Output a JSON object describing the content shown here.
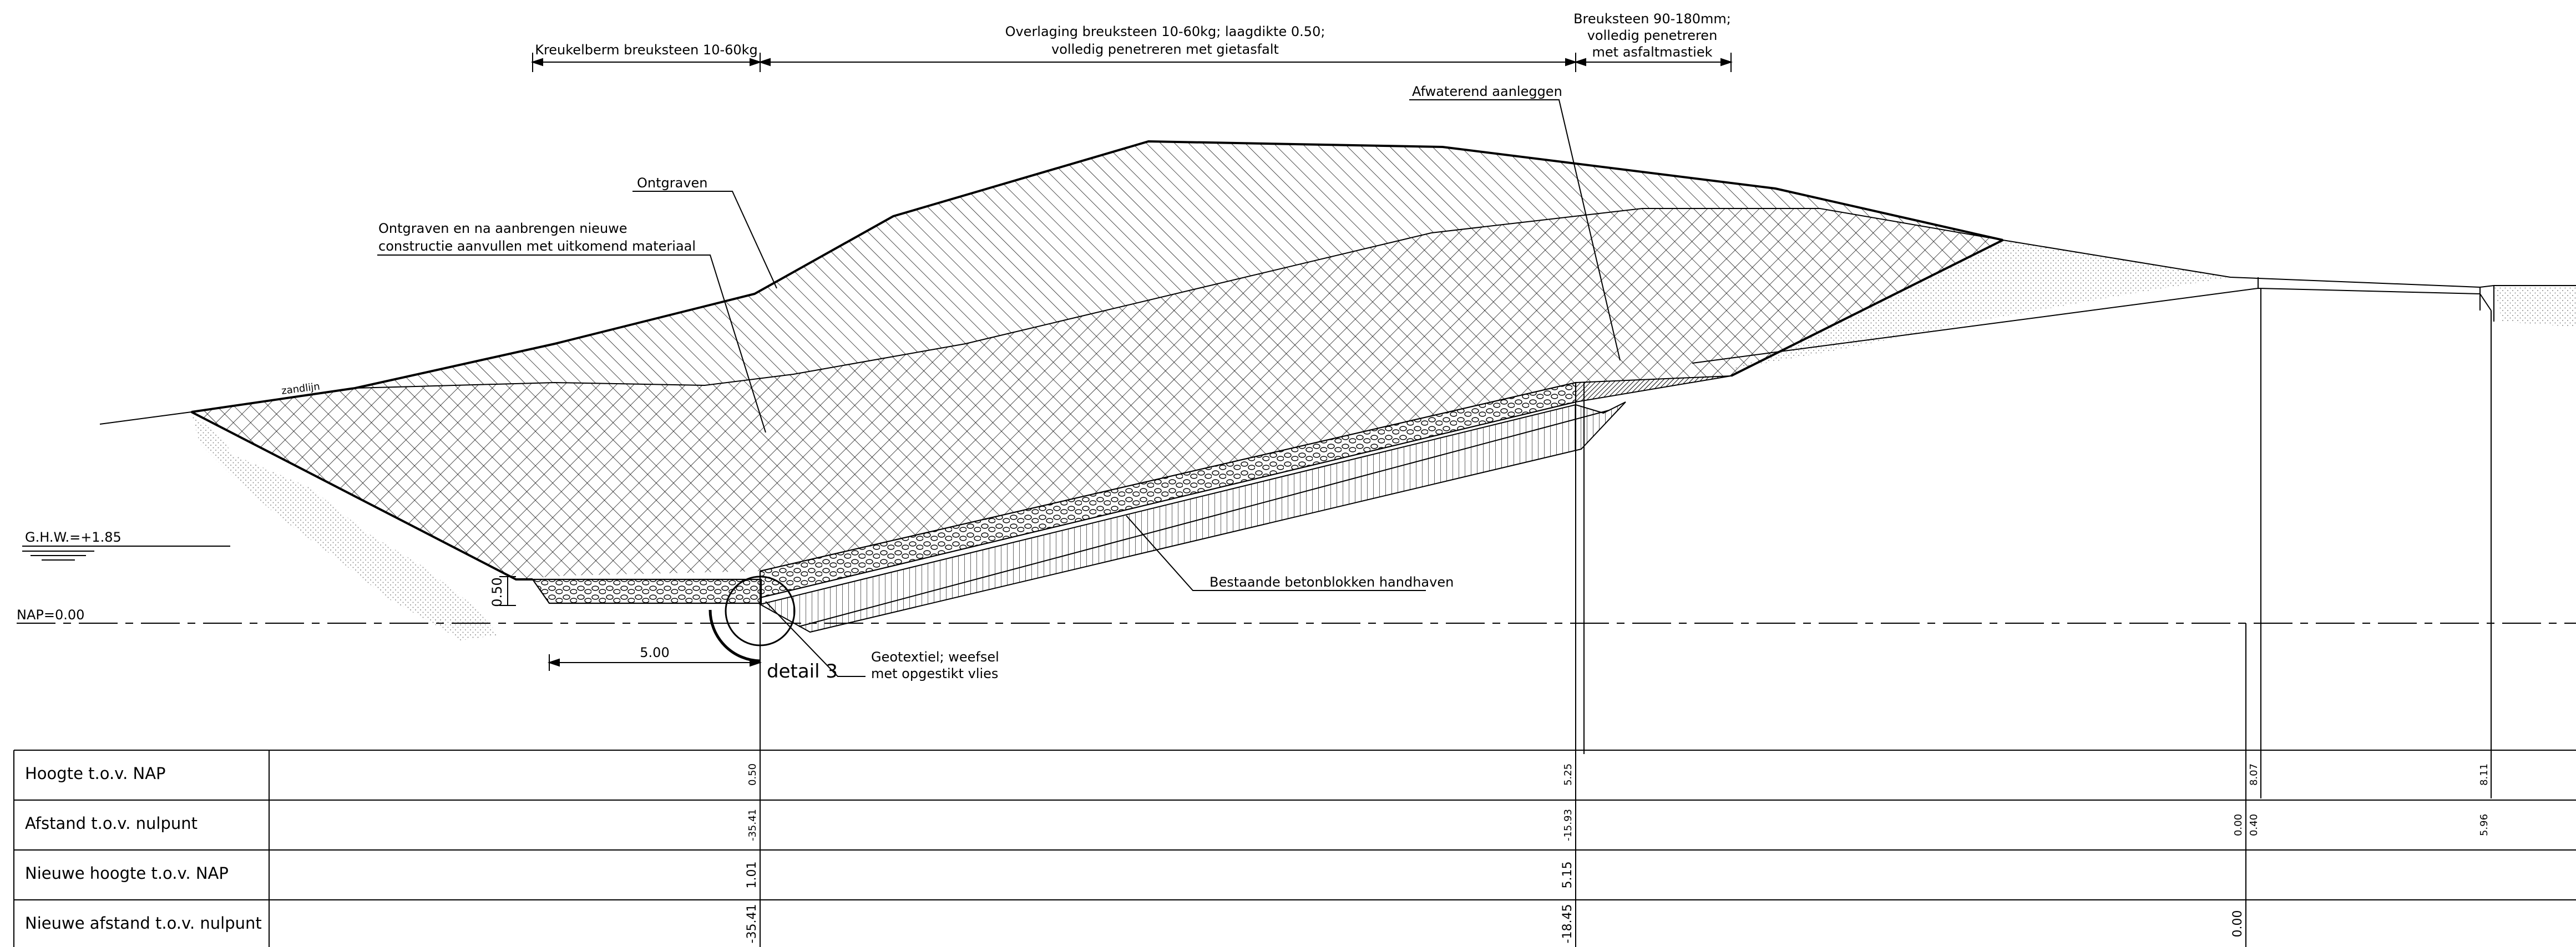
{
  "annotations": {
    "kreukelberm": "Kreukelberm breuksteen 10-60kg",
    "overlaging_1": "Overlaging breuksteen 10-60kg; laagdikte 0.50;",
    "overlaging_2": "volledig penetreren met gietasfalt",
    "breuksteen_1": "Breuksteen 90-180mm;",
    "breuksteen_2": "volledig penetreren",
    "breuksteen_3": "met asfaltmastiek",
    "afwaterend": "Afwaterend aanleggen",
    "ontgraven": "Ontgraven",
    "ontgraven_nieuw_1": "Ontgraven en na aanbrengen nieuwe",
    "ontgraven_nieuw_2": "constructie aanvullen met uitkomend materiaal",
    "zandlijn": "zandlijn",
    "ghw": "G.H.W.=+1.85",
    "nap": "NAP=0.00",
    "dim_050": "0.50",
    "dim_500": "5.00",
    "detail": "detail 3",
    "geotextiel_1": "Geotextiel; weefsel",
    "geotextiel_2": "met opgestikt vlies",
    "betonblokken": "Bestaande betonblokken handhaven"
  },
  "table": {
    "rows": [
      {
        "label": "Hoogte t.o.v. NAP",
        "values": [
          "0.50",
          "5.25",
          "8.07",
          "8.11"
        ]
      },
      {
        "label": "Afstand t.o.v. nulpunt",
        "values": [
          "-35.41",
          "-15.93",
          "0.00",
          "0.40",
          "5.96"
        ]
      },
      {
        "label": "Nieuwe hoogte t.o.v. NAP",
        "values": [
          "1.01",
          "5.15"
        ]
      },
      {
        "label": "Nieuwe afstand t.o.v. nulpunt",
        "values": [
          "-35.41",
          "-18.45",
          "0.00"
        ]
      }
    ]
  },
  "colors": {
    "line": "#000000",
    "background": "#ffffff",
    "sand_stipple": "#8a8a8a"
  }
}
